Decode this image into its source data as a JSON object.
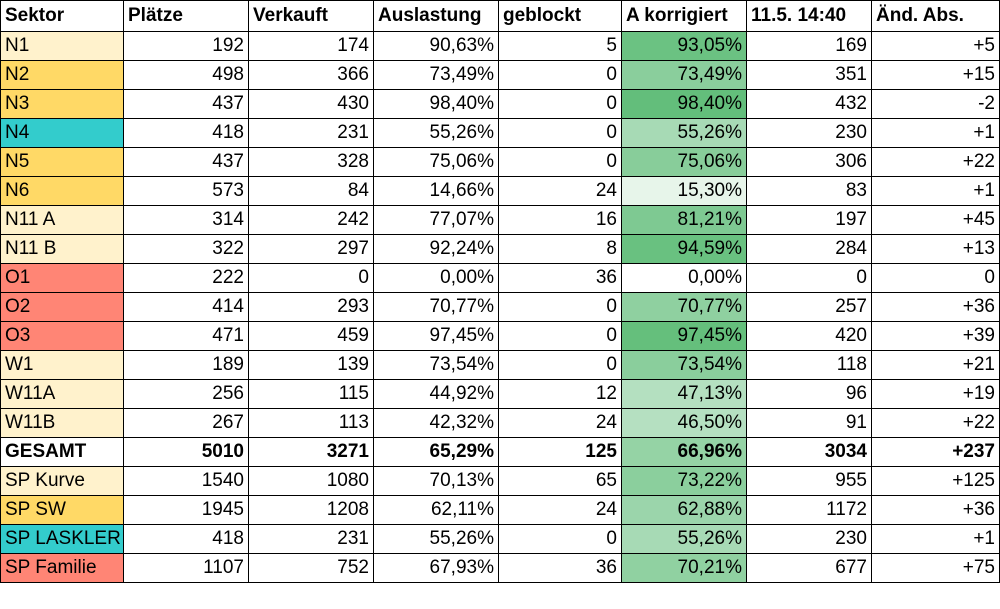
{
  "colors": {
    "light": "#fff2cc",
    "gold": "#ffd966",
    "teal": "#33cccc",
    "salmon": "#ff8575",
    "white": "#ffffff",
    "scale_low": "#ffffff",
    "scale_high": "#63be7b"
  },
  "headers": [
    "Sektor",
    "Plätze",
    "Verkauft",
    "Auslastung",
    "geblockt",
    "A korrigiert",
    "11.5. 14:40",
    "Änd. Abs."
  ],
  "rows": [
    {
      "sektor": "N1",
      "color": "light",
      "plaetze": "192",
      "verkauft": "174",
      "auslastung": "90,63%",
      "geblockt": "5",
      "a_korr": "93,05%",
      "a_val": 93.05,
      "stand": "169",
      "aend": "+5"
    },
    {
      "sektor": "N2",
      "color": "gold",
      "plaetze": "498",
      "verkauft": "366",
      "auslastung": "73,49%",
      "geblockt": "0",
      "a_korr": "73,49%",
      "a_val": 73.49,
      "stand": "351",
      "aend": "+15"
    },
    {
      "sektor": "N3",
      "color": "gold",
      "plaetze": "437",
      "verkauft": "430",
      "auslastung": "98,40%",
      "geblockt": "0",
      "a_korr": "98,40%",
      "a_val": 98.4,
      "stand": "432",
      "aend": "-2"
    },
    {
      "sektor": "N4",
      "color": "teal",
      "plaetze": "418",
      "verkauft": "231",
      "auslastung": "55,26%",
      "geblockt": "0",
      "a_korr": "55,26%",
      "a_val": 55.26,
      "stand": "230",
      "aend": "+1"
    },
    {
      "sektor": "N5",
      "color": "gold",
      "plaetze": "437",
      "verkauft": "328",
      "auslastung": "75,06%",
      "geblockt": "0",
      "a_korr": "75,06%",
      "a_val": 75.06,
      "stand": "306",
      "aend": "+22"
    },
    {
      "sektor": "N6",
      "color": "gold",
      "plaetze": "573",
      "verkauft": "84",
      "auslastung": "14,66%",
      "geblockt": "24",
      "a_korr": "15,30%",
      "a_val": 15.3,
      "stand": "83",
      "aend": "+1"
    },
    {
      "sektor": "N11 A",
      "color": "light",
      "plaetze": "314",
      "verkauft": "242",
      "auslastung": "77,07%",
      "geblockt": "16",
      "a_korr": "81,21%",
      "a_val": 81.21,
      "stand": "197",
      "aend": "+45"
    },
    {
      "sektor": "N11 B",
      "color": "light",
      "plaetze": "322",
      "verkauft": "297",
      "auslastung": "92,24%",
      "geblockt": "8",
      "a_korr": "94,59%",
      "a_val": 94.59,
      "stand": "284",
      "aend": "+13"
    },
    {
      "sektor": "O1",
      "color": "salmon",
      "plaetze": "222",
      "verkauft": "0",
      "auslastung": "0,00%",
      "geblockt": "36",
      "a_korr": "0,00%",
      "a_val": 0.0,
      "stand": "0",
      "aend": "0"
    },
    {
      "sektor": "O2",
      "color": "salmon",
      "plaetze": "414",
      "verkauft": "293",
      "auslastung": "70,77%",
      "geblockt": "0",
      "a_korr": "70,77%",
      "a_val": 70.77,
      "stand": "257",
      "aend": "+36"
    },
    {
      "sektor": "O3",
      "color": "salmon",
      "plaetze": "471",
      "verkauft": "459",
      "auslastung": "97,45%",
      "geblockt": "0",
      "a_korr": "97,45%",
      "a_val": 97.45,
      "stand": "420",
      "aend": "+39"
    },
    {
      "sektor": "W1",
      "color": "light",
      "plaetze": "189",
      "verkauft": "139",
      "auslastung": "73,54%",
      "geblockt": "0",
      "a_korr": "73,54%",
      "a_val": 73.54,
      "stand": "118",
      "aend": "+21"
    },
    {
      "sektor": "W11A",
      "color": "light",
      "plaetze": "256",
      "verkauft": "115",
      "auslastung": "44,92%",
      "geblockt": "12",
      "a_korr": "47,13%",
      "a_val": 47.13,
      "stand": "96",
      "aend": "+19"
    },
    {
      "sektor": "W11B",
      "color": "light",
      "plaetze": "267",
      "verkauft": "113",
      "auslastung": "42,32%",
      "geblockt": "24",
      "a_korr": "46,50%",
      "a_val": 46.5,
      "stand": "91",
      "aend": "+22"
    },
    {
      "sektor": "GESAMT",
      "color": "white",
      "bold": true,
      "plaetze": "5010",
      "verkauft": "3271",
      "auslastung": "65,29%",
      "geblockt": "125",
      "a_korr": "66,96%",
      "a_val": 66.96,
      "stand": "3034",
      "aend": "+237"
    },
    {
      "sektor": "SP Kurve",
      "color": "light",
      "plaetze": "1540",
      "verkauft": "1080",
      "auslastung": "70,13%",
      "geblockt": "65",
      "a_korr": "73,22%",
      "a_val": 73.22,
      "stand": "955",
      "aend": "+125"
    },
    {
      "sektor": "SP SW",
      "color": "gold",
      "plaetze": "1945",
      "verkauft": "1208",
      "auslastung": "62,11%",
      "geblockt": "24",
      "a_korr": "62,88%",
      "a_val": 62.88,
      "stand": "1172",
      "aend": "+36"
    },
    {
      "sektor": "SP LASKLER",
      "color": "teal",
      "plaetze": "418",
      "verkauft": "231",
      "auslastung": "55,26%",
      "geblockt": "0",
      "a_korr": "55,26%",
      "a_val": 55.26,
      "stand": "230",
      "aend": "+1"
    },
    {
      "sektor": "SP Familie",
      "color": "salmon",
      "plaetze": "1107",
      "verkauft": "752",
      "auslastung": "67,93%",
      "geblockt": "36",
      "a_korr": "70,21%",
      "a_val": 70.21,
      "stand": "677",
      "aend": "+75"
    }
  ]
}
